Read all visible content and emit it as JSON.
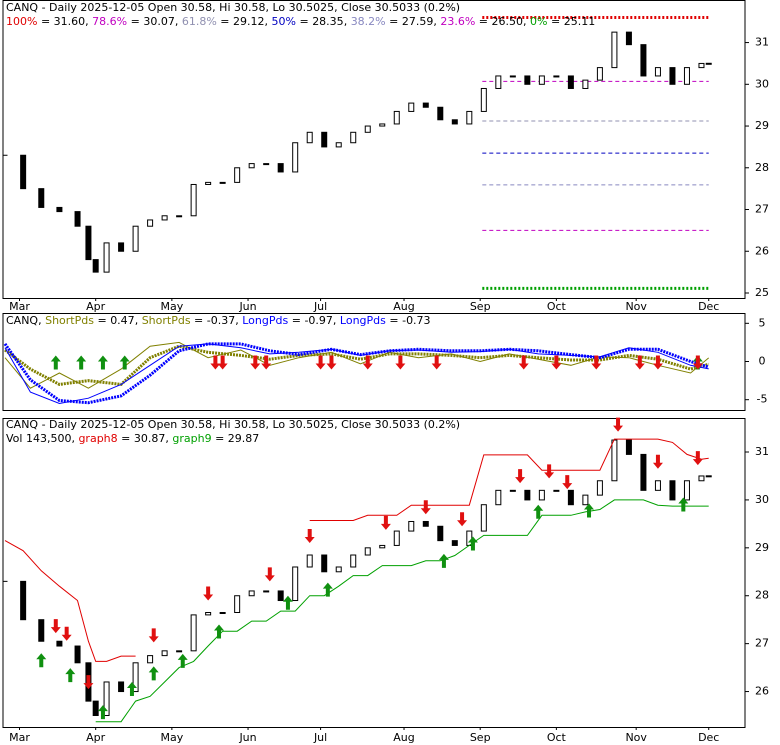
{
  "chart_data": [
    {
      "type": "candle",
      "title": "CANQ - Daily 2025-12-05 Open 30.58, Hi 30.58, Lo 30.5025, Close 30.5033 (0.2%)",
      "x": [
        0,
        5,
        10,
        15,
        20,
        23,
        25,
        28,
        32,
        36,
        40,
        44,
        48,
        52,
        56,
        60,
        64,
        68,
        72,
        76,
        80,
        84,
        88,
        92,
        96,
        100,
        104,
        108,
        112,
        116,
        120,
        124,
        128,
        132,
        136,
        140,
        144,
        148,
        152,
        156,
        160,
        164,
        168,
        172,
        176,
        180,
        184,
        188,
        192,
        194
      ],
      "values": [
        28.3,
        27.5,
        27.05,
        26.95,
        26.6,
        25.8,
        25.5,
        26.2,
        26.0,
        26.6,
        26.75,
        26.85,
        26.85,
        27.6,
        27.65,
        27.65,
        28.0,
        28.1,
        28.1,
        27.9,
        28.6,
        28.85,
        28.5,
        28.6,
        28.85,
        29.0,
        29.05,
        29.35,
        29.55,
        29.45,
        29.15,
        29.05,
        29.35,
        29.9,
        30.2,
        30.2,
        30.0,
        30.2,
        30.2,
        29.9,
        30.1,
        30.4,
        31.25,
        30.95,
        30.2,
        30.4,
        30.0,
        30.4,
        30.5,
        30.5033
      ],
      "fib_levels": {
        "names": [
          "100%",
          "78.6%",
          "61.8%",
          "50%",
          "38.2%",
          "23.6%",
          "0%"
        ],
        "values": [
          31.6,
          30.07,
          29.12,
          28.35,
          27.59,
          26.5,
          25.11
        ],
        "value_labels": [
          "31.60",
          "30.07",
          "29.12",
          "28.35",
          "27.59",
          "26.50",
          "25.11"
        ],
        "colors": [
          "#e00000",
          "#c000c0",
          "#9090b0",
          "#0000c0",
          "#8888c0",
          "#c000c0",
          "#00a000"
        ]
      },
      "xlim": [
        0,
        204
      ],
      "ylim": [
        24.88,
        31.9
      ],
      "yticks": [
        25,
        26,
        27,
        28,
        29,
        30,
        31
      ],
      "xticks": [
        {
          "value": 4,
          "label": "Mar"
        },
        {
          "value": 25,
          "label": "Apr"
        },
        {
          "value": 46,
          "label": "May"
        },
        {
          "value": 67,
          "label": "Jun"
        },
        {
          "value": 87,
          "label": "Jul"
        },
        {
          "value": 110,
          "label": "Aug"
        },
        {
          "value": 131,
          "label": "Sep"
        },
        {
          "value": 152,
          "label": "Oct"
        },
        {
          "value": 174,
          "label": "Nov"
        },
        {
          "value": 194,
          "label": "Dec"
        }
      ]
    },
    {
      "type": "line",
      "title": "CANQ",
      "x": [
        0,
        7,
        15,
        23,
        32,
        40,
        48,
        56,
        65,
        73,
        81,
        90,
        98,
        106,
        114,
        123,
        131,
        139,
        147,
        156,
        164,
        172,
        180,
        189,
        194
      ],
      "series": [
        {
          "name": "ShortPds",
          "color": "#808000",
          "line_width": 1,
          "values": [
            0.5,
            -3.5,
            -1.5,
            -3.5,
            -1.0,
            2.0,
            2.5,
            0.5,
            1.5,
            -0.5,
            0.5,
            1.2,
            -0.3,
            1.2,
            0.5,
            1.0,
            0.0,
            1.0,
            0.3,
            -0.5,
            0.6,
            0.5,
            -0.5,
            -1.5,
            0.47
          ]
        },
        {
          "name": "ShortPds",
          "color": "#808000",
          "line_width": 3,
          "values": [
            1.5,
            -1.0,
            -3.0,
            -2.5,
            -3.0,
            0.5,
            2.0,
            1.2,
            0.8,
            0.3,
            0.8,
            1.0,
            0.3,
            1.0,
            1.0,
            0.8,
            0.5,
            0.8,
            0.5,
            0.2,
            0.2,
            0.8,
            0.3,
            -1.0,
            -0.37
          ]
        },
        {
          "name": "LongPds",
          "color": "#0000ff",
          "line_width": 1,
          "values": [
            1.8,
            -4.0,
            -5.5,
            -4.8,
            -3.0,
            -0.5,
            2.0,
            2.3,
            1.8,
            1.0,
            1.2,
            1.6,
            0.8,
            1.4,
            1.5,
            1.2,
            1.3,
            1.6,
            1.0,
            0.8,
            0.6,
            1.8,
            1.2,
            -0.5,
            -0.97
          ]
        },
        {
          "name": "LongPds",
          "color": "#0000ff",
          "line_width": 3,
          "values": [
            2.3,
            -2.4,
            -5.1,
            -5.4,
            -4.5,
            -1.8,
            1.4,
            2.3,
            2.3,
            1.4,
            0.9,
            1.6,
            0.9,
            1.4,
            1.6,
            1.4,
            1.4,
            1.6,
            1.4,
            0.9,
            0.5,
            1.6,
            1.6,
            0.0,
            -0.73
          ]
        }
      ],
      "buy_signals": [
        14,
        21,
        27,
        33,
        191
      ],
      "sell_signals": [
        58,
        60,
        69,
        72,
        87,
        90,
        100,
        109,
        119,
        143,
        152,
        163,
        175,
        180,
        191
      ],
      "xlim": [
        0,
        204
      ],
      "ylim": [
        -6.35,
        6.35
      ],
      "yticks": [
        5,
        0,
        -5
      ]
    },
    {
      "type": "candle",
      "title": "CANQ - Daily 2025-12-05 Open 30.58, Hi 30.58, Lo 30.5025, Close 30.5033 (0.2%)",
      "volume_label": "Vol 143,500",
      "x": [
        0,
        5,
        10,
        15,
        20,
        23,
        25,
        28,
        32,
        36,
        40,
        44,
        48,
        52,
        56,
        60,
        64,
        68,
        72,
        76,
        80,
        84,
        88,
        92,
        96,
        100,
        104,
        108,
        112,
        116,
        120,
        124,
        128,
        132,
        136,
        140,
        144,
        148,
        152,
        156,
        160,
        164,
        168,
        172,
        176,
        180,
        184,
        188,
        192,
        194
      ],
      "values": [
        28.3,
        27.5,
        27.05,
        26.95,
        26.6,
        25.8,
        25.5,
        26.2,
        26.0,
        26.6,
        26.75,
        26.85,
        26.85,
        27.6,
        27.65,
        27.65,
        28.0,
        28.1,
        28.1,
        27.9,
        28.6,
        28.85,
        28.5,
        28.6,
        28.85,
        29.0,
        29.05,
        29.35,
        29.55,
        29.45,
        29.15,
        29.05,
        29.35,
        29.9,
        30.2,
        30.2,
        30.0,
        30.2,
        30.2,
        29.9,
        30.1,
        30.4,
        31.25,
        30.95,
        30.2,
        30.4,
        30.0,
        30.4,
        30.5,
        30.5033
      ],
      "series": [
        {
          "name": "graph8",
          "color": "#e00000",
          "line_width": 1,
          "values": [
            29.15,
            28.94,
            28.52,
            28.2,
            27.9,
            27.05,
            26.63,
            26.63,
            26.74,
            26.74,
            null,
            null,
            null,
            null,
            null,
            null,
            null,
            null,
            null,
            null,
            null,
            29.57,
            29.57,
            29.57,
            29.57,
            29.68,
            29.68,
            29.68,
            29.89,
            29.89,
            29.89,
            29.89,
            29.89,
            30.94,
            30.94,
            30.94,
            30.94,
            30.62,
            30.62,
            30.62,
            30.62,
            30.62,
            31.27,
            31.27,
            31.27,
            31.27,
            31.2,
            30.95,
            30.85,
            30.87
          ]
        },
        {
          "name": "graph9",
          "color": "#00a000",
          "line_width": 1,
          "values": [
            null,
            null,
            null,
            null,
            null,
            null,
            25.37,
            25.37,
            25.37,
            25.8,
            25.9,
            26.2,
            26.5,
            26.63,
            26.95,
            27.26,
            27.26,
            27.47,
            27.47,
            27.68,
            27.68,
            28.0,
            28.0,
            28.2,
            28.42,
            28.42,
            28.63,
            28.63,
            28.63,
            28.73,
            28.73,
            28.84,
            29.05,
            29.26,
            29.26,
            29.26,
            29.26,
            29.68,
            29.68,
            29.68,
            29.75,
            29.8,
            30.0,
            30.0,
            30.0,
            29.89,
            29.87,
            29.87,
            29.87,
            29.87
          ]
        }
      ],
      "buy_signals": [
        10,
        18,
        27,
        35,
        41,
        49,
        59,
        78,
        89,
        121,
        129,
        147,
        161,
        187
      ],
      "sell_signals": [
        14,
        17,
        23,
        41,
        56,
        73,
        84,
        105,
        116,
        126,
        142,
        150,
        155,
        169,
        180,
        191
      ],
      "xlim": [
        0,
        204
      ],
      "ylim": [
        25.26,
        31.71
      ],
      "yticks": [
        26,
        27,
        28,
        29,
        30,
        31
      ],
      "xticks": [
        {
          "value": 4,
          "label": "Mar"
        },
        {
          "value": 25,
          "label": "Apr"
        },
        {
          "value": 46,
          "label": "May"
        },
        {
          "value": 67,
          "label": "Jun"
        },
        {
          "value": 87,
          "label": "Jul"
        },
        {
          "value": 110,
          "label": "Aug"
        },
        {
          "value": 131,
          "label": "Sep"
        },
        {
          "value": 152,
          "label": "Oct"
        },
        {
          "value": 174,
          "label": "Nov"
        },
        {
          "value": 194,
          "label": "Dec"
        }
      ]
    }
  ]
}
